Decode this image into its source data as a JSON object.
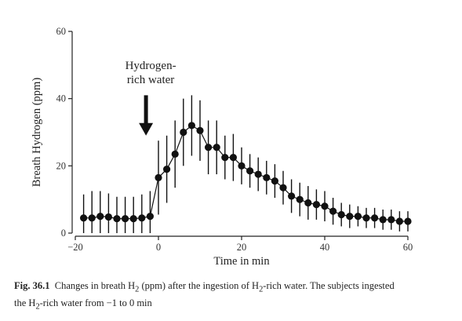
{
  "chart_data": {
    "type": "line",
    "title": "",
    "xlabel": "Time in min",
    "ylabel": "Breath Hydrogen (ppm)",
    "xlim": [
      -20,
      60
    ],
    "ylim": [
      0,
      60
    ],
    "xticks": [
      -20,
      0,
      20,
      40,
      60
    ],
    "yticks": [
      0,
      20,
      40,
      60
    ],
    "grid": false,
    "annotation": {
      "lines": [
        "Hydrogen-",
        "rich water"
      ],
      "arrow_x": -3,
      "arrow_from_y": 41,
      "arrow_to_y": 29
    },
    "series": [
      {
        "x": [
          -18,
          -16,
          -14,
          -12,
          -10,
          -8,
          -6,
          -4,
          -2,
          0,
          2,
          4,
          6,
          8,
          10,
          12,
          14,
          16,
          18,
          20,
          22,
          24,
          26,
          28,
          30,
          32,
          34,
          36,
          38,
          40,
          42,
          44,
          46,
          48,
          50,
          52,
          54,
          56,
          58,
          60
        ],
        "y": [
          4.5,
          4.5,
          5,
          4.8,
          4.3,
          4.3,
          4.3,
          4.5,
          5,
          16.5,
          19,
          23.5,
          30,
          32,
          30.5,
          25.5,
          25.5,
          22.5,
          22.5,
          20,
          18.5,
          17.5,
          16.5,
          15.5,
          13.5,
          11,
          10,
          9,
          8.5,
          8,
          6.5,
          5.5,
          5,
          5,
          4.5,
          4.5,
          4,
          4,
          3.5,
          3.5
        ],
        "error": [
          7,
          8,
          7.5,
          7,
          6.5,
          6.5,
          6.5,
          7,
          7.5,
          11,
          10,
          10,
          10,
          9,
          9,
          8,
          8,
          6.5,
          7,
          5.5,
          5,
          5,
          5,
          5,
          5,
          5,
          5,
          5,
          4.5,
          4.5,
          4,
          3.5,
          3.5,
          3,
          3,
          3,
          3,
          3,
          3,
          3
        ]
      }
    ]
  },
  "caption": {
    "label": "Fig. 36.1",
    "line1_a": "Changes in breath H",
    "line1_sub": "2",
    "line1_b": " (ppm) after the ingestion of H",
    "line1_sub2": "2",
    "line1_c": "-rich water. The subjects ingested",
    "line2_a": "the H",
    "line2_sub": "2",
    "line2_b": "-rich water from −1 to 0 min"
  }
}
